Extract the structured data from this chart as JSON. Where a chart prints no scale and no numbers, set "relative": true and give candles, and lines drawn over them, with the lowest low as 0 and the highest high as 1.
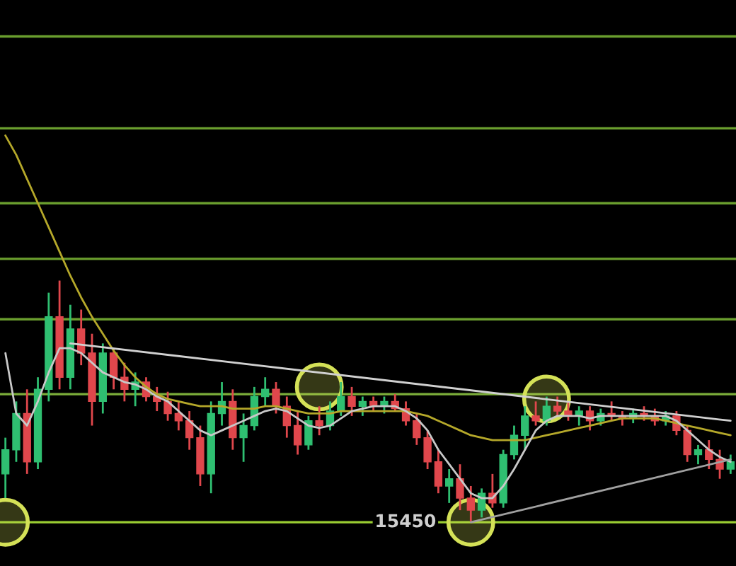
{
  "chart_data": {
    "type": "candlestick",
    "relative": true,
    "categories": [
      null,
      null,
      null,
      null,
      null,
      null,
      null,
      null,
      null,
      null,
      null,
      null,
      null,
      null,
      null,
      null,
      null,
      null,
      null,
      null,
      null,
      null,
      null,
      null,
      null,
      null,
      null,
      null,
      null,
      null,
      null,
      null,
      null,
      null,
      null,
      null,
      null,
      null,
      null,
      null,
      null,
      null,
      null,
      null,
      null,
      null,
      null,
      null,
      null,
      null,
      null,
      null,
      null,
      null,
      null,
      null,
      null,
      null,
      null,
      null,
      null,
      null,
      null,
      null,
      null,
      null,
      null,
      null
    ],
    "ohlc": [
      [
        0.2,
        0.35,
        0.1,
        0.3
      ],
      [
        0.3,
        0.5,
        0.25,
        0.45
      ],
      [
        0.45,
        0.55,
        0.2,
        0.25
      ],
      [
        0.25,
        0.6,
        0.22,
        0.55
      ],
      [
        0.55,
        0.95,
        0.5,
        0.85
      ],
      [
        0.85,
        1.0,
        0.55,
        0.6
      ],
      [
        0.6,
        0.9,
        0.55,
        0.8
      ],
      [
        0.8,
        0.88,
        0.65,
        0.7
      ],
      [
        0.7,
        0.78,
        0.4,
        0.5
      ],
      [
        0.5,
        0.74,
        0.45,
        0.7
      ],
      [
        0.7,
        0.72,
        0.55,
        0.6
      ],
      [
        0.6,
        0.66,
        0.5,
        0.55
      ],
      [
        0.55,
        0.62,
        0.48,
        0.58
      ],
      [
        0.58,
        0.6,
        0.5,
        0.52
      ],
      [
        0.52,
        0.56,
        0.46,
        0.5
      ],
      [
        0.5,
        0.54,
        0.42,
        0.45
      ],
      [
        0.45,
        0.5,
        0.38,
        0.42
      ],
      [
        0.42,
        0.46,
        0.3,
        0.35
      ],
      [
        0.35,
        0.4,
        0.15,
        0.2
      ],
      [
        0.2,
        0.5,
        0.12,
        0.45
      ],
      [
        0.45,
        0.58,
        0.4,
        0.5
      ],
      [
        0.5,
        0.55,
        0.3,
        0.35
      ],
      [
        0.35,
        0.45,
        0.25,
        0.4
      ],
      [
        0.4,
        0.56,
        0.38,
        0.52
      ],
      [
        0.52,
        0.6,
        0.48,
        0.55
      ],
      [
        0.55,
        0.58,
        0.45,
        0.48
      ],
      [
        0.48,
        0.52,
        0.35,
        0.4
      ],
      [
        0.4,
        0.46,
        0.28,
        0.32
      ],
      [
        0.32,
        0.44,
        0.3,
        0.42
      ],
      [
        0.42,
        0.48,
        0.36,
        0.4
      ],
      [
        0.4,
        0.5,
        0.38,
        0.46
      ],
      [
        0.46,
        0.58,
        0.44,
        0.52
      ],
      [
        0.52,
        0.56,
        0.44,
        0.48
      ],
      [
        0.48,
        0.52,
        0.44,
        0.5
      ],
      [
        0.5,
        0.52,
        0.46,
        0.48
      ],
      [
        0.48,
        0.52,
        0.45,
        0.5
      ],
      [
        0.5,
        0.53,
        0.46,
        0.47
      ],
      [
        0.47,
        0.5,
        0.4,
        0.42
      ],
      [
        0.42,
        0.45,
        0.32,
        0.35
      ],
      [
        0.35,
        0.38,
        0.22,
        0.25
      ],
      [
        0.25,
        0.3,
        0.12,
        0.15
      ],
      [
        0.15,
        0.22,
        0.08,
        0.18
      ],
      [
        0.18,
        0.24,
        0.05,
        0.1
      ],
      [
        0.1,
        0.15,
        0.0,
        0.05
      ],
      [
        0.05,
        0.14,
        0.02,
        0.12
      ],
      [
        0.12,
        0.2,
        0.06,
        0.08
      ],
      [
        0.08,
        0.3,
        0.06,
        0.28
      ],
      [
        0.28,
        0.4,
        0.26,
        0.36
      ],
      [
        0.36,
        0.48,
        0.3,
        0.44
      ],
      [
        0.44,
        0.5,
        0.4,
        0.42
      ],
      [
        0.42,
        0.52,
        0.4,
        0.48
      ],
      [
        0.48,
        0.52,
        0.44,
        0.46
      ],
      [
        0.46,
        0.5,
        0.42,
        0.44
      ],
      [
        0.44,
        0.48,
        0.4,
        0.46
      ],
      [
        0.46,
        0.48,
        0.38,
        0.42
      ],
      [
        0.42,
        0.47,
        0.4,
        0.45
      ],
      [
        0.45,
        0.5,
        0.42,
        0.44
      ],
      [
        0.44,
        0.46,
        0.4,
        0.43
      ],
      [
        0.43,
        0.47,
        0.41,
        0.45
      ],
      [
        0.45,
        0.48,
        0.42,
        0.44
      ],
      [
        0.44,
        0.47,
        0.4,
        0.42
      ],
      [
        0.42,
        0.46,
        0.4,
        0.44
      ],
      [
        0.44,
        0.46,
        0.36,
        0.38
      ],
      [
        0.38,
        0.4,
        0.25,
        0.28
      ],
      [
        0.28,
        0.32,
        0.24,
        0.3
      ],
      [
        0.3,
        0.34,
        0.22,
        0.26
      ],
      [
        0.26,
        0.3,
        0.18,
        0.22
      ],
      [
        0.22,
        0.28,
        0.2,
        0.25
      ]
    ],
    "series": [
      {
        "type": "line",
        "color": "#b5a82a",
        "values": [
          1.6,
          1.52,
          1.42,
          1.32,
          1.22,
          1.12,
          1.02,
          0.93,
          0.85,
          0.78,
          0.71,
          0.65,
          0.6,
          0.56,
          0.53,
          0.51,
          0.5,
          0.49,
          0.48,
          0.48,
          0.48,
          0.47,
          0.47,
          0.47,
          0.48,
          0.48,
          0.47,
          0.46,
          0.45,
          0.45,
          0.45,
          0.46,
          0.46,
          0.46,
          0.46,
          0.46,
          0.46,
          0.46,
          0.45,
          0.44,
          0.42,
          0.4,
          0.38,
          0.36,
          0.35,
          0.34,
          0.34,
          0.34,
          0.34,
          0.35,
          0.36,
          0.37,
          0.38,
          0.39,
          0.4,
          0.41,
          0.42,
          0.43,
          0.43,
          0.43,
          0.43,
          0.42,
          0.41,
          0.4,
          0.39,
          0.38,
          0.37,
          0.36
        ]
      },
      {
        "type": "line",
        "color": "#c8c8c8",
        "values": [
          0.7,
          0.45,
          0.4,
          0.5,
          0.62,
          0.72,
          0.72,
          0.7,
          0.66,
          0.62,
          0.6,
          0.58,
          0.57,
          0.55,
          0.52,
          0.5,
          0.46,
          0.42,
          0.38,
          0.36,
          0.38,
          0.4,
          0.42,
          0.44,
          0.46,
          0.47,
          0.46,
          0.43,
          0.4,
          0.39,
          0.4,
          0.43,
          0.46,
          0.47,
          0.48,
          0.48,
          0.48,
          0.46,
          0.43,
          0.38,
          0.3,
          0.24,
          0.18,
          0.12,
          0.1,
          0.1,
          0.15,
          0.22,
          0.3,
          0.38,
          0.42,
          0.44,
          0.44,
          0.44,
          0.43,
          0.44,
          0.44,
          0.44,
          0.44,
          0.44,
          0.44,
          0.44,
          0.42,
          0.38,
          0.34,
          0.3,
          0.27,
          0.25
        ]
      },
      {
        "type": "line",
        "color": "#d0d0d0",
        "values": [
          null,
          null,
          null,
          null,
          null,
          null,
          0.74,
          null,
          null,
          null,
          null,
          null,
          null,
          null,
          null,
          null,
          null,
          null,
          null,
          null,
          null,
          null,
          null,
          null,
          null,
          null,
          null,
          null,
          null,
          null,
          null,
          null,
          null,
          null,
          null,
          null,
          null,
          null,
          null,
          null,
          null,
          null,
          null,
          null,
          null,
          null,
          null,
          null,
          null,
          null,
          null,
          null,
          null,
          null,
          null,
          null,
          null,
          null,
          null,
          null,
          null,
          null,
          null,
          null,
          null,
          null,
          null,
          0.42
        ]
      },
      {
        "type": "line",
        "color": "#a0a0a0",
        "values": [
          null,
          null,
          null,
          null,
          null,
          null,
          null,
          null,
          null,
          null,
          null,
          null,
          null,
          null,
          null,
          null,
          null,
          null,
          null,
          null,
          null,
          null,
          null,
          null,
          null,
          null,
          null,
          null,
          null,
          null,
          null,
          null,
          null,
          null,
          null,
          null,
          null,
          null,
          null,
          null,
          null,
          null,
          null,
          0.0,
          null,
          null,
          null,
          null,
          null,
          null,
          null,
          null,
          null,
          null,
          null,
          null,
          null,
          null,
          null,
          null,
          null,
          null,
          null,
          null,
          null,
          null,
          null,
          0.26
        ]
      },
      {
        "type": "scatter",
        "marker": "circle",
        "color": "#d4e157",
        "values": [
          0.0,
          null,
          null,
          null,
          null,
          null,
          null,
          null,
          null,
          null,
          null,
          null,
          null,
          null,
          null,
          null,
          null,
          null,
          null,
          null,
          null,
          null,
          null,
          null,
          null,
          null,
          null,
          null,
          null,
          0.56,
          null,
          null,
          null,
          null,
          null,
          null,
          null,
          null,
          null,
          null,
          null,
          null,
          null,
          0.0,
          null,
          null,
          null,
          null,
          null,
          null,
          0.51,
          null,
          null,
          null,
          null,
          null,
          null,
          null,
          null,
          null,
          null,
          null,
          null,
          null,
          null,
          null,
          null,
          null
        ]
      }
    ],
    "ref_lines": [
      {
        "axis": "y",
        "value": 0.0,
        "color": "#9acd32"
      },
      {
        "axis": "y",
        "value": 0.53,
        "color": "#7cae3a"
      },
      {
        "axis": "y",
        "value": 0.84,
        "color": "#6a9e2e"
      },
      {
        "axis": "y",
        "value": 1.09,
        "color": "#6a9e2e"
      },
      {
        "axis": "y",
        "value": 1.32,
        "color": "#6a9e2e"
      },
      {
        "axis": "y",
        "value": 1.63,
        "color": "#6a9e2e"
      },
      {
        "axis": "y",
        "value": 2.01,
        "color": "#6a9e2e"
      }
    ],
    "annotations": [
      "15450"
    ]
  }
}
